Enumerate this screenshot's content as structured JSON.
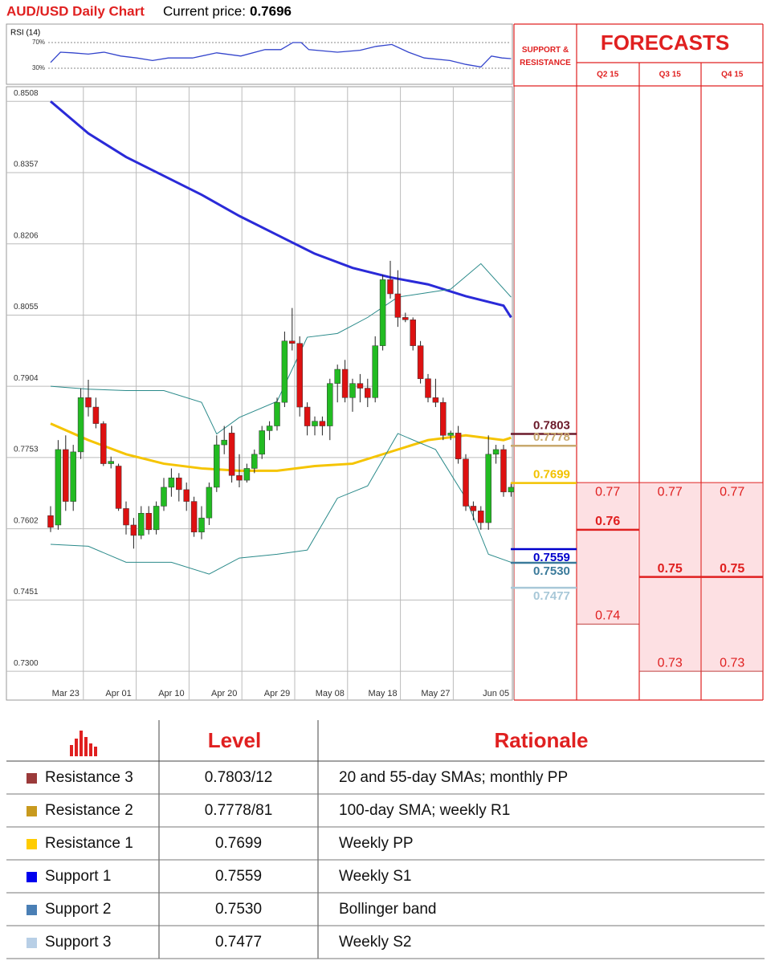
{
  "chart_data": [
    {
      "type": "candlestick",
      "title": "AUD/USD Daily Chart",
      "current_price_label": "Current price:",
      "current_price": 0.7696,
      "ylim": [
        0.7239,
        0.8539
      ],
      "yticks": [
        0.8508,
        0.8357,
        0.8206,
        0.8055,
        0.7904,
        0.7753,
        0.7602,
        0.7451,
        {
          "value": 0.73,
          "label": "0.7300"
        }
      ],
      "grid": true,
      "categories": [
        null,
        null,
        "Mar 23",
        null,
        null,
        null,
        null,
        null,
        null,
        "Apr 01",
        null,
        null,
        null,
        null,
        null,
        null,
        "Apr 10",
        null,
        null,
        null,
        null,
        null,
        null,
        "Apr 20",
        null,
        null,
        null,
        null,
        null,
        null,
        "Apr 29",
        null,
        null,
        null,
        null,
        null,
        null,
        "May 08",
        null,
        null,
        null,
        null,
        null,
        null,
        "May 18",
        null,
        null,
        null,
        null,
        null,
        null,
        "May 27",
        null,
        null,
        null,
        null,
        null,
        null,
        null,
        "Jun 05",
        null,
        null
      ],
      "open": [
        0.763,
        0.761,
        0.777,
        0.766,
        0.7765,
        0.788,
        0.786,
        0.7825,
        0.774,
        0.7735,
        0.7645,
        0.761,
        0.7588,
        0.7635,
        0.76,
        0.765,
        0.769,
        0.771,
        0.7685,
        0.766,
        0.7595,
        0.7625,
        0.769,
        0.778,
        0.7805,
        0.7715,
        0.7705,
        0.773,
        0.776,
        0.781,
        0.782,
        0.787,
        0.8,
        0.7995,
        0.786,
        0.782,
        0.783,
        0.782,
        0.791,
        0.794,
        0.788,
        0.791,
        0.79,
        0.788,
        0.799,
        0.813,
        0.81,
        0.805,
        0.8045,
        0.799,
        0.792,
        0.788,
        0.787,
        0.78,
        0.7805,
        0.775,
        0.765,
        0.764,
        0.7615,
        0.776,
        0.777,
        0.768
      ],
      "high": [
        0.765,
        0.779,
        0.78,
        0.778,
        0.79,
        0.7918,
        0.788,
        0.783,
        0.7755,
        0.774,
        0.766,
        0.7625,
        0.765,
        0.765,
        0.766,
        0.771,
        0.773,
        0.772,
        0.77,
        0.767,
        0.765,
        0.77,
        0.78,
        0.782,
        0.782,
        0.776,
        0.774,
        0.777,
        0.782,
        0.783,
        0.788,
        0.802,
        0.807,
        0.801,
        0.787,
        0.784,
        0.784,
        0.792,
        0.795,
        0.796,
        0.792,
        0.793,
        0.792,
        0.801,
        0.814,
        0.817,
        0.815,
        0.806,
        0.805,
        0.8,
        0.793,
        0.792,
        0.788,
        0.781,
        0.782,
        0.776,
        0.766,
        0.765,
        0.78,
        0.778,
        0.778,
        0.77
      ],
      "low": [
        0.7595,
        0.76,
        0.764,
        0.764,
        0.775,
        0.784,
        0.7815,
        0.7735,
        0.773,
        0.764,
        0.759,
        0.756,
        0.758,
        0.759,
        0.759,
        0.764,
        0.767,
        0.766,
        0.764,
        0.7585,
        0.758,
        0.761,
        0.768,
        0.776,
        0.77,
        0.769,
        0.77,
        0.772,
        0.775,
        0.779,
        0.781,
        0.786,
        0.798,
        0.784,
        0.78,
        0.78,
        0.78,
        0.779,
        0.787,
        0.787,
        0.785,
        0.787,
        0.786,
        0.787,
        0.798,
        0.809,
        0.803,
        0.804,
        0.798,
        0.791,
        0.787,
        0.786,
        0.779,
        0.779,
        0.774,
        0.764,
        0.762,
        0.76,
        0.76,
        0.774,
        0.767,
        0.767
      ],
      "close": [
        0.7605,
        0.777,
        0.766,
        0.7765,
        0.788,
        0.786,
        0.7825,
        0.774,
        0.7745,
        0.7645,
        0.761,
        0.7588,
        0.7635,
        0.76,
        0.765,
        0.769,
        0.771,
        0.7685,
        0.766,
        0.7595,
        0.7625,
        0.769,
        0.778,
        0.779,
        0.7715,
        0.7705,
        0.773,
        0.776,
        0.781,
        0.782,
        0.787,
        0.8,
        0.7995,
        0.786,
        0.782,
        0.783,
        0.782,
        0.791,
        0.794,
        0.788,
        0.791,
        0.79,
        0.788,
        0.799,
        0.813,
        0.81,
        0.805,
        0.8045,
        0.799,
        0.792,
        0.788,
        0.787,
        0.78,
        0.7805,
        0.775,
        0.765,
        0.764,
        0.7615,
        0.776,
        0.777,
        0.768,
        0.769
      ],
      "up_color": "#22bb22",
      "down_color": "#dd1111",
      "overlays": [
        {
          "color": "#2a2ad8",
          "width": 3,
          "x": [
            0,
            5,
            10,
            15,
            20,
            25,
            30,
            35,
            40,
            45,
            50,
            55,
            60,
            61
          ],
          "values": [
            0.8508,
            0.844,
            0.839,
            0.835,
            0.831,
            0.8265,
            0.8225,
            0.8185,
            0.8155,
            0.8135,
            0.812,
            0.8095,
            0.8075,
            0.805
          ]
        },
        {
          "color": "#f5c400",
          "width": 3,
          "x": [
            0,
            5,
            10,
            15,
            20,
            25,
            30,
            35,
            40,
            45,
            50,
            55,
            60,
            61
          ],
          "values": [
            0.7825,
            0.779,
            0.776,
            0.774,
            0.773,
            0.7725,
            0.7725,
            0.7735,
            0.774,
            0.7765,
            0.779,
            0.78,
            0.779,
            0.7795
          ]
        },
        {
          "color": "#2a8a8a",
          "width": 1,
          "x": [
            0,
            5,
            10,
            15,
            20,
            22,
            25,
            30,
            34,
            38,
            42,
            46,
            53,
            57,
            61
          ],
          "values": [
            0.7904,
            0.7898,
            0.7895,
            0.7895,
            0.787,
            0.7803,
            0.7838,
            0.7872,
            0.8008,
            0.8016,
            0.805,
            0.8093,
            0.811,
            0.8164,
            0.8093
          ]
        },
        {
          "color": "#2a8a8a",
          "width": 1,
          "x": [
            0,
            5,
            10,
            16,
            21,
            25,
            30,
            34,
            38,
            42,
            46,
            51,
            55,
            58,
            61
          ],
          "values": [
            0.7569,
            0.7565,
            0.7531,
            0.7531,
            0.7506,
            0.754,
            0.7548,
            0.7557,
            0.7667,
            0.7693,
            0.7804,
            0.777,
            0.7667,
            0.7548,
            0.7531
          ]
        }
      ],
      "levels": {
        "values": [
          0.7803,
          0.7778,
          0.7699,
          0.7559,
          0.753,
          0.7477
        ],
        "value_labels": [
          "0.7803",
          "0.7778",
          "0.7699",
          "0.7559",
          "0.7530",
          "0.7477"
        ],
        "colors": [
          "#6b1a2a",
          "#c8a96e",
          "#f2c200",
          "#0000cc",
          "#3a7a9a",
          "#a8c8d8"
        ]
      },
      "forecasts": {
        "header": "SUPPORT & RESISTANCE",
        "title": "FORECASTS",
        "quarters": [
          "Q2 15",
          "Q3 15",
          "Q4 15"
        ],
        "high": [
          0.77,
          0.77,
          0.77
        ],
        "mid": [
          0.76,
          0.75,
          0.75
        ],
        "low": [
          0.74,
          0.73,
          0.73
        ]
      }
    },
    {
      "type": "line",
      "title": "RSI (14)",
      "color": "#3344cc",
      "x": [
        0,
        1.3,
        2.9,
        5,
        7.1,
        9.3,
        11.4,
        13.5,
        15.6,
        18.8,
        22,
        25.2,
        28.4,
        30.5,
        32.1,
        33.2,
        34.2,
        38,
        41,
        43.1,
        45.2,
        47.4,
        49.5,
        52.9,
        55,
        57,
        58.4,
        59.8,
        61
      ],
      "values": [
        39,
        55,
        54,
        52,
        55,
        49,
        46,
        42,
        46,
        46,
        54,
        49,
        59,
        59,
        70,
        70,
        59,
        55,
        58,
        64,
        67,
        55,
        46,
        42,
        36,
        32,
        49,
        46,
        45
      ],
      "ylim": [
        7.5,
        92.5
      ],
      "yticks": [
        {
          "value": 70,
          "label": "70%"
        },
        {
          "value": 30,
          "label": "30%"
        }
      ]
    }
  ],
  "table": {
    "headers": [
      "Level",
      "Rationale"
    ],
    "rows": [
      {
        "name": "Resistance 3",
        "level": "0.7803/12",
        "rationale": "20 and 55-day SMAs; monthly PP",
        "color": "#9b3a3a"
      },
      {
        "name": "Resistance 2",
        "level": "0.7778/81",
        "rationale": "100-day SMA; weekly R1",
        "color": "#c89a1e"
      },
      {
        "name": "Resistance 1",
        "level": "0.7699",
        "rationale": "Weekly PP",
        "color": "#ffcc00"
      },
      {
        "name": "Support 1",
        "level": "0.7559",
        "rationale": "Weekly S1",
        "color": "#0000ee"
      },
      {
        "name": "Support 2",
        "level": "0.7530",
        "rationale": "Bollinger band",
        "color": "#4a7fb5"
      },
      {
        "name": "Support 3",
        "level": "0.7477",
        "rationale": "Weekly S2",
        "color": "#b8cfe6"
      }
    ]
  }
}
